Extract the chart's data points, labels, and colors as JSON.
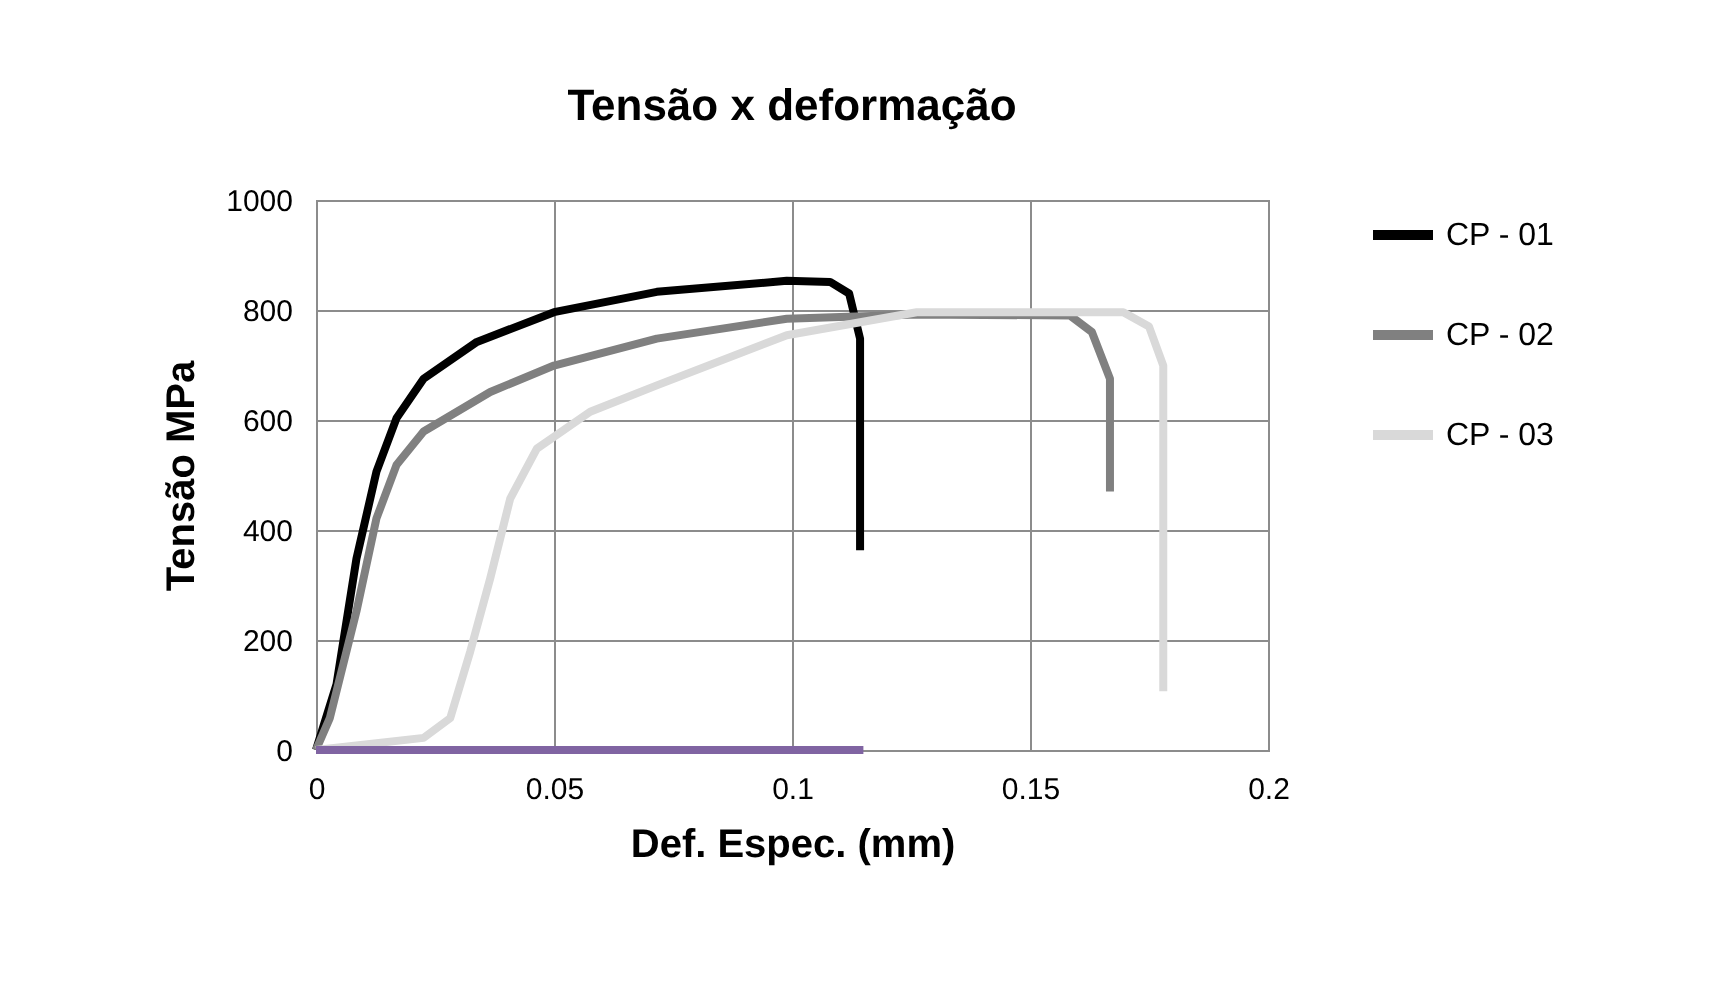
{
  "chart_data": {
    "type": "line",
    "title": "Tensão x deformação",
    "xlabel": "Def. Espec. (mm)",
    "ylabel": "Tensão MPa",
    "xlim": [
      0,
      0.2
    ],
    "xticks": [
      0,
      0.05,
      0.1,
      0.15,
      0.2
    ],
    "ylim": [
      0,
      1000
    ],
    "yticks": [
      0,
      200,
      400,
      600,
      800,
      1000
    ],
    "grid": true,
    "legend": "right",
    "line_style": "solid",
    "marker": "none",
    "series": [
      {
        "name": "CP - 01",
        "color": "#000000",
        "x": [
          0,
          0.0043,
          0.0085,
          0.0127,
          0.0169,
          0.0226,
          0.0338,
          0.05,
          0.0716,
          0.0989,
          0.108,
          0.112,
          0.1143,
          0.1143
        ],
        "values": [
          0,
          119,
          348,
          506,
          603,
          675,
          742,
          796,
          833,
          853,
          851,
          830,
          748,
          363
        ]
      },
      {
        "name": "CP - 02",
        "color": "#808080",
        "x": [
          0,
          0.0029,
          0.0085,
          0.0127,
          0.0169,
          0.0226,
          0.0366,
          0.05,
          0.0716,
          0.0989,
          0.1262,
          0.1584,
          0.163,
          0.1668,
          0.1668
        ],
        "values": [
          0,
          58,
          252,
          421,
          518,
          579,
          651,
          699,
          748,
          784,
          792,
          790,
          760,
          675,
          470
        ]
      },
      {
        "name": "CP - 03",
        "color": "#d9d9d9",
        "x": [
          0,
          0.0226,
          0.0282,
          0.0324,
          0.0366,
          0.0408,
          0.0464,
          0.0576,
          0.0716,
          0.0989,
          0.1262,
          0.1696,
          0.175,
          0.178,
          0.178
        ],
        "values": [
          0,
          22,
          58,
          179,
          312,
          457,
          548,
          615,
          663,
          754,
          796,
          796,
          770,
          699,
          107
        ]
      },
      {
        "color": "#8064a2",
        "x": [
          0,
          0.115
        ],
        "values": [
          0,
          0
        ]
      }
    ]
  }
}
